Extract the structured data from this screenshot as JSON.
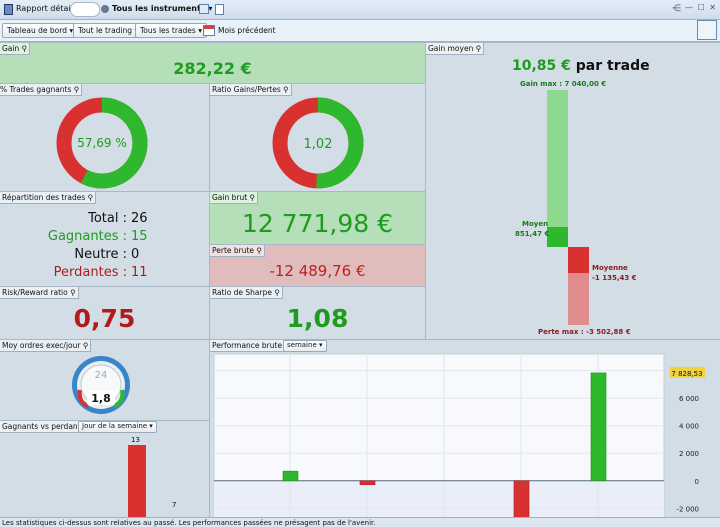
{
  "titlebar": {
    "report_label": "Rapport détaillé",
    "instruments_label": "Tous les instruments ▾",
    "window_controls": "— ☐ ✕"
  },
  "toolbar": {
    "dashboard": "Tableau de bord",
    "trading": "Tout le trading",
    "trades": "Tous les trades",
    "period": "Mois précédent"
  },
  "panels": {
    "gain": {
      "label": "Gain",
      "value": "282,22 €"
    },
    "gain_moyen": {
      "label": "Gain moyen",
      "value": "10,85 €",
      "suffix": "par trade",
      "max_label": "Gain max : 7 040,00 €",
      "moyen_label": "Moyen",
      "moyen_value": "851,47 €",
      "moyenne_label": "Moyenne",
      "moyenne_value": "-1 135,43 €",
      "perte_max_label": "Perte max : -3 502,88 €"
    },
    "trades_gagnants": {
      "label": "% Trades gagnants",
      "value": "57,69 %"
    },
    "ratio_gains": {
      "label": "Ratio Gains/Pertes",
      "value": "1,02"
    },
    "repartition": {
      "label": "Répartition des trades",
      "total_label": "Total :",
      "total": "26",
      "gagnantes_label": "Gagnantes :",
      "gagnantes": "15",
      "neutre_label": "Neutre :",
      "neutre": "0",
      "perdantes_label": "Perdantes :",
      "perdantes": "11"
    },
    "gain_brut": {
      "label": "Gain brut",
      "value": "12 771,98 €"
    },
    "perte_brute": {
      "label": "Perte brute",
      "value": "-12 489,76 €"
    },
    "risk_reward": {
      "label": "Risk/Reward ratio",
      "value": "0,75"
    },
    "sharpe": {
      "label": "Ratio de Sharpe",
      "value": "1,08"
    },
    "moy_ordres": {
      "label": "Moy ordres exec/jour",
      "value": "1,8",
      "dial": "24"
    },
    "gagnants_vs_perdants": {
      "label": "Gagnants vs perdants",
      "selector": "Jour de la semaine",
      "bar1": "13",
      "bar2": "7"
    },
    "perf_brute": {
      "label": "Performance brute",
      "selector": "semaine",
      "last_value": "7 828,53"
    }
  },
  "colors": {
    "green": "#2eb82e",
    "red": "#d93030"
  },
  "chart_data": {
    "type": "bar",
    "title": "Performance brute",
    "ylim": [
      -2700,
      9200
    ],
    "yticks": [
      "8 000",
      "6 000",
      "4 000",
      "2 000",
      "0",
      "-2 000"
    ],
    "ytick_values": [
      8000,
      6000,
      4000,
      2000,
      0,
      -2000
    ],
    "values": [
      700,
      -280,
      -3400,
      7828.53
    ]
  },
  "footer": "Les statistiques ci-dessus sont relatives au passé. Les performances passées ne présagent pas de l'avenir."
}
